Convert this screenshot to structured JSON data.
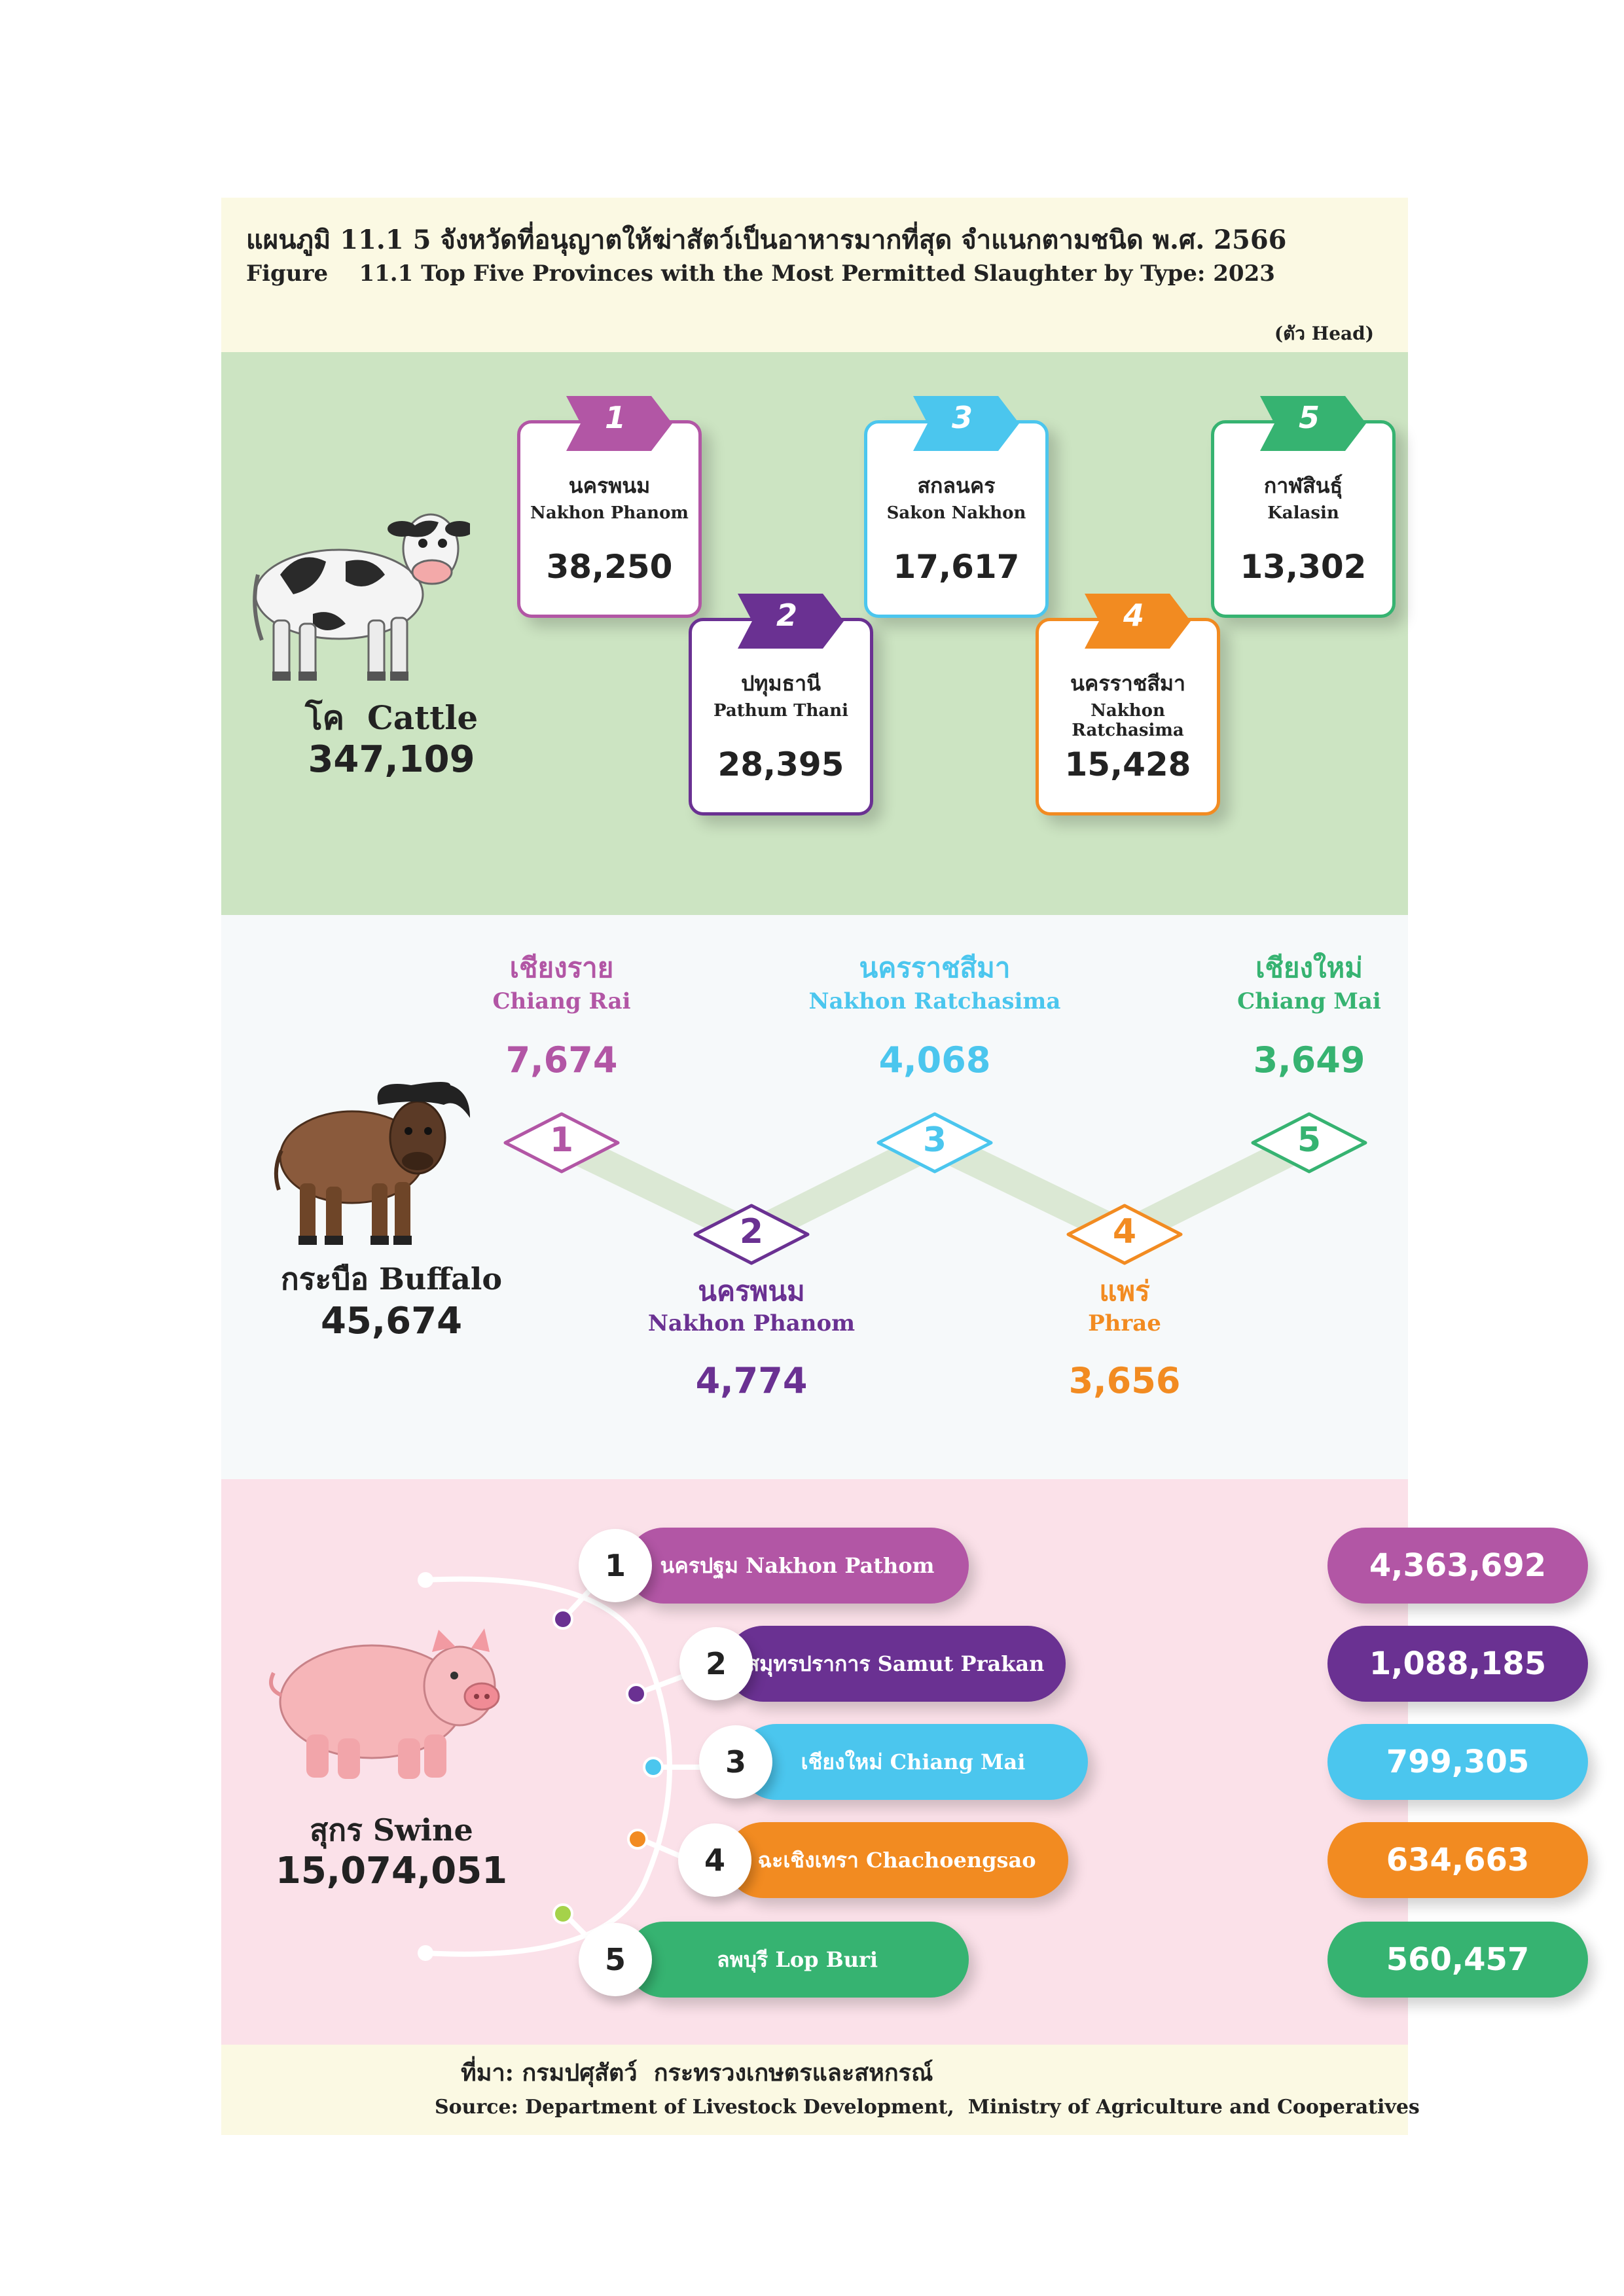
{
  "header": {
    "title_th": "แผนภูมิ 11.1 5 จังหวัดที่อนุญาตให้ฆ่าสัตว์เป็นอาหารมากที่สุด จำแนกตามชนิด พ.ศ. 2566",
    "title_en": "Figure    11.1 Top Five Provinces with the Most Permitted Slaughter by Type: 2023",
    "unit": "(ตัว  Head)"
  },
  "colors": {
    "header_bg": "#fbf9e3",
    "cattle_bg": "#cce4c2",
    "buffalo_bg": "#f6f9fa",
    "swine_bg": "#fbe1e9",
    "purple_light": "#b256a5",
    "purple_dark": "#6a3192",
    "cyan": "#4bc6ee",
    "orange": "#f28b21",
    "green": "#36b371"
  },
  "chart_data": [
    {
      "type": "table",
      "category": "cattle",
      "label_th": "โค",
      "label_en": "Cattle",
      "total": "347,109",
      "ranks": [
        {
          "rank": "1",
          "province_th": "นครพนม",
          "province_en": "Nakhon Phanom",
          "value": "38,250"
        },
        {
          "rank": "2",
          "province_th": "ปทุมธานี",
          "province_en": "Pathum Thani",
          "value": "28,395"
        },
        {
          "rank": "3",
          "province_th": "สกลนคร",
          "province_en": "Sakon Nakhon",
          "value": "17,617"
        },
        {
          "rank": "4",
          "province_th": "นครราชสีมา",
          "province_en": "Nakhon Ratchasima",
          "value": "15,428"
        },
        {
          "rank": "5",
          "province_th": "กาฬสินธุ์",
          "province_en": "Kalasin",
          "value": "13,302"
        }
      ]
    },
    {
      "type": "table",
      "category": "buffalo",
      "label": "กระบือ Buffalo",
      "total": "45,674",
      "ranks": [
        {
          "rank": "1",
          "province_th": "เชียงราย",
          "province_en": "Chiang Rai",
          "value": "7,674"
        },
        {
          "rank": "2",
          "province_th": "นครพนม",
          "province_en": "Nakhon Phanom",
          "value": "4,774"
        },
        {
          "rank": "3",
          "province_th": "นครราชสีมา",
          "province_en": "Nakhon Ratchasima",
          "value": "4,068"
        },
        {
          "rank": "4",
          "province_th": "แพร่",
          "province_en": "Phrae",
          "value": "3,656"
        },
        {
          "rank": "5",
          "province_th": "เชียงใหม่",
          "province_en": "Chiang Mai",
          "value": "3,649"
        }
      ]
    },
    {
      "type": "table",
      "category": "swine",
      "label": "สุกร Swine",
      "total": "15,074,051",
      "ranks": [
        {
          "rank": "1",
          "province": "นครปฐม Nakhon Pathom",
          "value": "4,363,692"
        },
        {
          "rank": "2",
          "province": "สมุทรปราการ Samut Prakan",
          "value": "1,088,185"
        },
        {
          "rank": "3",
          "province": "เชียงใหม่ Chiang Mai",
          "value": "799,305"
        },
        {
          "rank": "4",
          "province": "ฉะเชิงเทรา Chachoengsao",
          "value": "634,663"
        },
        {
          "rank": "5",
          "province": "ลพบุรี Lop Buri",
          "value": "560,457"
        }
      ]
    }
  ],
  "footer": {
    "source_th": "ที่มา: กรมปศุสัตว์  กระทรวงเกษตรและสหกรณ์",
    "source_en": "Source: Department of Livestock Development,  Ministry of Agriculture and Cooperatives"
  }
}
